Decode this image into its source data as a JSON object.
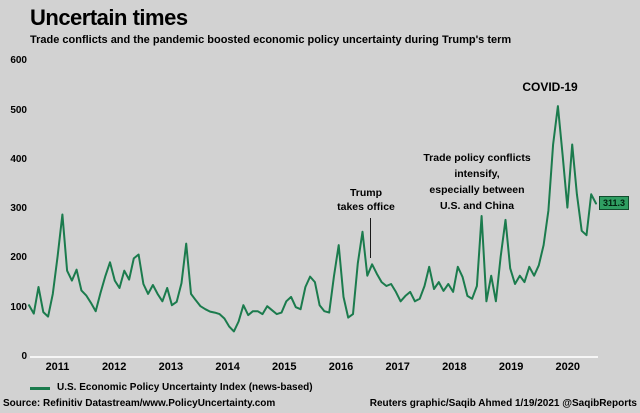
{
  "header": {
    "title": "Uncertain times",
    "subtitle": "Trade conflicts and the pandemic boosted economic policy uncertainty during Trump's term"
  },
  "chart_data": {
    "type": "line",
    "title": "Uncertain times",
    "subtitle": "Trade conflicts and the pandemic boosted economic policy uncertainty during Trump's term",
    "frequency": "monthly",
    "x_start": "2011-01",
    "x_end": "2020-12",
    "x_tick_labels": [
      "2011",
      "2012",
      "2013",
      "2014",
      "2015",
      "2016",
      "2017",
      "2018",
      "2019",
      "2020"
    ],
    "y_ticks": [
      0,
      100,
      200,
      300,
      400,
      500,
      600
    ],
    "ylim": [
      0,
      600
    ],
    "grid": false,
    "legend_position": "bottom-left",
    "series": [
      {
        "name": "U.S. Economic Policy Uncertainty Index (news-based)",
        "color": "#1b7b4d",
        "values": [
          105,
          88,
          142,
          91,
          82,
          128,
          204,
          289,
          175,
          155,
          177,
          135,
          125,
          110,
          93,
          130,
          163,
          192,
          155,
          140,
          175,
          157,
          200,
          208,
          148,
          128,
          146,
          128,
          113,
          140,
          105,
          112,
          150,
          230,
          128,
          115,
          103,
          97,
          92,
          90,
          87,
          78,
          62,
          52,
          72,
          105,
          85,
          93,
          93,
          87,
          103,
          95,
          87,
          90,
          113,
          122,
          101,
          97,
          142,
          163,
          152,
          105,
          93,
          90,
          163,
          227,
          122,
          80,
          87,
          190,
          254,
          165,
          188,
          169,
          152,
          144,
          148,
          132,
          113,
          124,
          132,
          113,
          118,
          144,
          183,
          138,
          152,
          134,
          148,
          132,
          183,
          162,
          124,
          118,
          144,
          286,
          113,
          165,
          113,
          204,
          278,
          180,
          148,
          165,
          152,
          183,
          165,
          186,
          227,
          297,
          431,
          509,
          410,
          303,
          431,
          330,
          256,
          247,
          330,
          311.3
        ]
      }
    ],
    "last_value_label": "311.3",
    "annotations": [
      {
        "id": "trump",
        "lines": [
          "Trump",
          "takes office"
        ],
        "pointer": "vertical-line",
        "points_to": "2017-01"
      },
      {
        "id": "trade",
        "lines": [
          "Trade policy conflicts",
          "intensify,",
          "especially between",
          "U.S. and China"
        ]
      },
      {
        "id": "covid",
        "lines": [
          "COVID-19"
        ]
      }
    ]
  },
  "annotations": {
    "trump": {
      "line1": "Trump",
      "line2": "takes office"
    },
    "trade": {
      "line1": "Trade policy conflicts",
      "line2": "intensify,",
      "line3": "especially between",
      "line4": "U.S. and China"
    },
    "covid": {
      "line1": "COVID-19"
    }
  },
  "badge": {
    "value": "311.3",
    "bg_color": "#2f9e62"
  },
  "legend": {
    "label": "U.S. Economic Policy Uncertainty Index (news-based)",
    "marker_color": "#1b7b4d"
  },
  "footer": {
    "source": "Source: Refinitiv Datastream/www.PolicyUncertainty.com",
    "credit": "Reuters graphic/Saqib Ahmed 1/19/2021 @SaqibReports"
  },
  "colors": {
    "background": "#d2d2d2",
    "line": "#1b7b4d",
    "axis_line": "#f6f6f6",
    "text": "#000000"
  }
}
